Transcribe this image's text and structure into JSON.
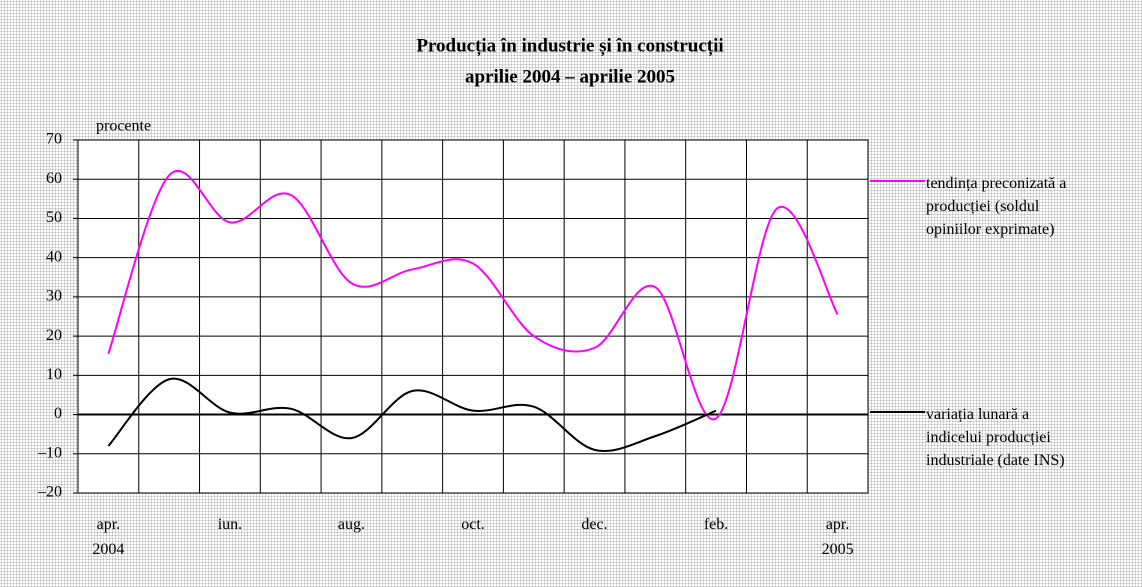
{
  "chart_data": {
    "type": "line",
    "title": "Producția în industrie și în construcții",
    "subtitle": "aprilie 2004 – aprilie 2005",
    "y_label": "procente",
    "categories": [
      "apr. 2004",
      null,
      "iun.",
      null,
      "aug.",
      null,
      "oct.",
      null,
      "dec.",
      null,
      "feb.",
      null,
      "apr. 2005"
    ],
    "series": [
      {
        "name": "tendința preconizată a producției (soldul opiniilor exprimate)",
        "color": "#ff00ff",
        "values": [
          15.5,
          61,
          49,
          56,
          33.5,
          37,
          38.5,
          20,
          17,
          32.5,
          -1,
          52.5,
          25.5
        ]
      },
      {
        "name": "variația lunară a indicelui producției industriale (date INS)",
        "color": "#000000",
        "values": [
          -8,
          9,
          0.5,
          1.5,
          -6,
          6,
          1,
          2,
          -9,
          -5.5,
          1,
          null,
          null
        ]
      }
    ],
    "ylim": [
      -20,
      70
    ],
    "yticks": [
      {
        "value": -20,
        "label": "–20"
      },
      {
        "value": -10,
        "label": "–10"
      },
      0,
      10,
      20,
      30,
      40,
      50,
      60,
      70
    ],
    "grid": true
  }
}
